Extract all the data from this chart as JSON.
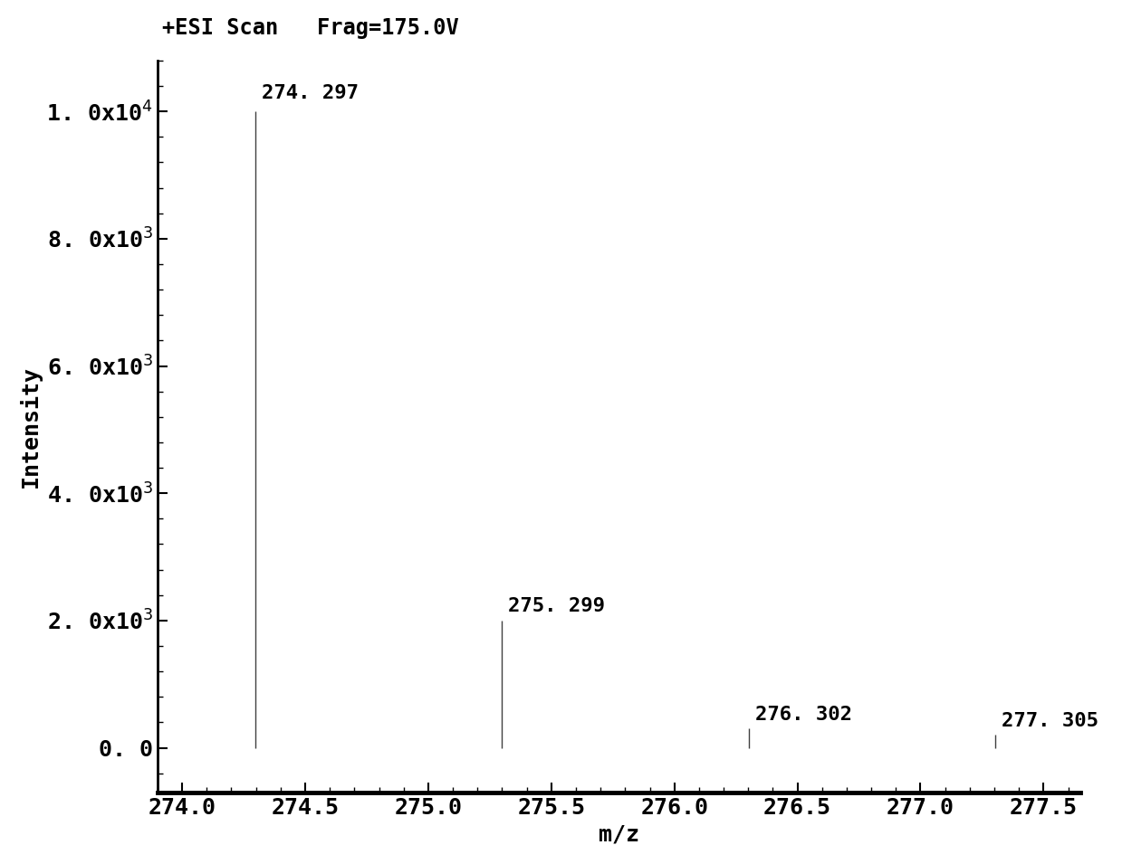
{
  "peaks": [
    {
      "mz": 274.297,
      "intensity": 10000,
      "label": "274. 297"
    },
    {
      "mz": 275.299,
      "intensity": 2000,
      "label": "275. 299"
    },
    {
      "mz": 276.302,
      "intensity": 300,
      "label": "276. 302"
    },
    {
      "mz": 277.305,
      "intensity": 200,
      "label": "277. 305"
    }
  ],
  "xlim": [
    273.9,
    277.65
  ],
  "ylim": [
    -700,
    10800
  ],
  "xticks": [
    274.0,
    274.5,
    275.0,
    275.5,
    276.0,
    276.5,
    277.0,
    277.5
  ],
  "yticks": [
    0,
    2000,
    4000,
    6000,
    8000,
    10000
  ],
  "ytick_labels": [
    "0. 0",
    "2. 0x10",
    "4. 0x10",
    "6. 0x10",
    "8. 0x10",
    "1. 0x10"
  ],
  "ytick_exponents": [
    "",
    "3",
    "3",
    "3",
    "3",
    "4"
  ],
  "xlabel": "m/z",
  "ylabel": "Intensity",
  "annotation_text": "+ESI Scan   Frag=175.0V",
  "peak_color": "#404040",
  "label_color": "#000000",
  "spine_color": "#000000",
  "background_color": "#ffffff",
  "font_size_ticks": 18,
  "font_size_labels": 18,
  "font_size_annotation": 17,
  "font_size_peak_labels": 16,
  "label_offsets": {
    "274. 297": [
      0.025,
      150
    ],
    "275. 299": [
      0.025,
      80
    ],
    "276. 302": [
      0.025,
      80
    ],
    "277. 305": [
      0.025,
      80
    ]
  }
}
